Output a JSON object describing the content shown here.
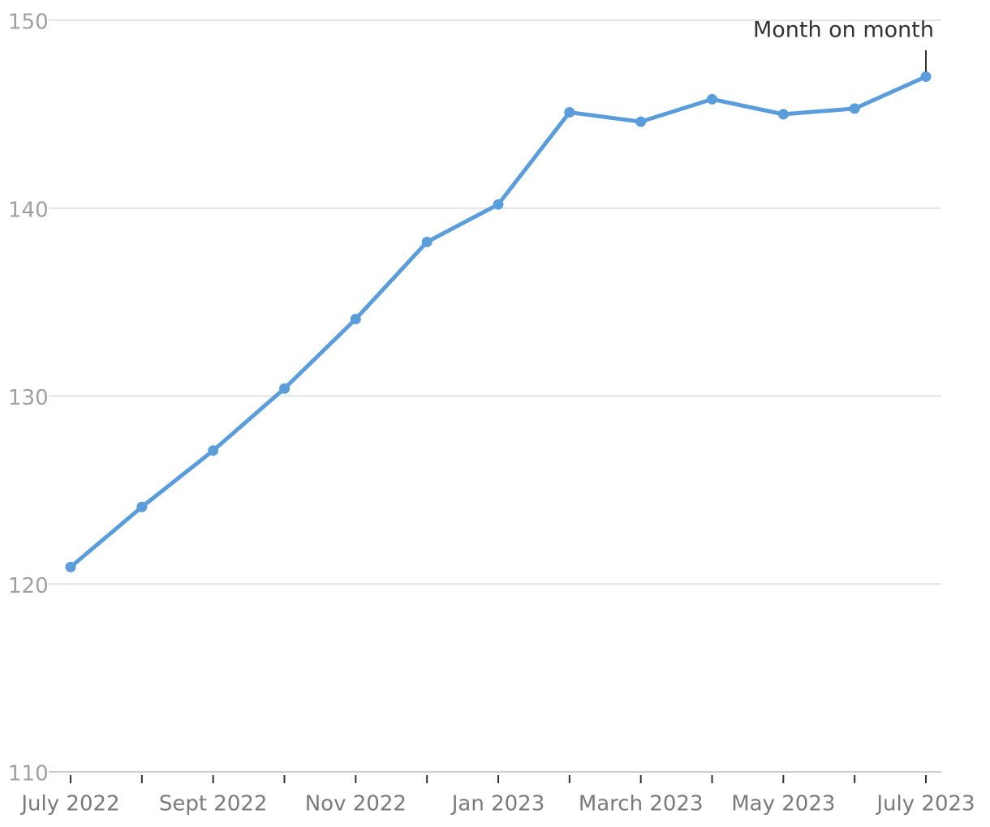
{
  "chart_data": {
    "type": "line",
    "categories": [
      "July 2022",
      null,
      "Sept 2022",
      null,
      "Nov 2022",
      null,
      "Jan 2023",
      null,
      "March 2023",
      null,
      "May 2023",
      null,
      "July 2023"
    ],
    "series": [
      {
        "color": "#5b9ddb",
        "values": [
          120.9,
          124.1,
          127.1,
          130.4,
          134.1,
          138.2,
          140.2,
          145.1,
          144.6,
          145.8,
          145.0,
          145.3,
          147.0
        ]
      }
    ],
    "ylim": [
      110,
      150
    ],
    "yticks": [
      110,
      120,
      130,
      140,
      150
    ],
    "grid": true,
    "annotation": "Month on month"
  }
}
